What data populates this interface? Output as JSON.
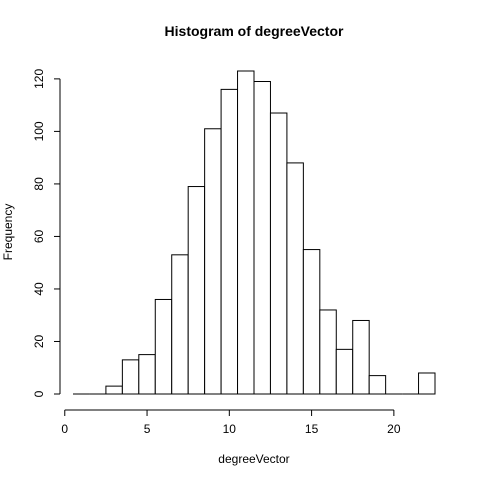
{
  "chart_data": {
    "type": "bar",
    "title": "Histogram of degreeVector",
    "xlabel": "degreeVector",
    "ylabel": "Frequency",
    "bin_width": 1,
    "bins": [
      {
        "x0": 0.5,
        "x1": 1.5,
        "count": 0
      },
      {
        "x0": 1.5,
        "x1": 2.5,
        "count": 0
      },
      {
        "x0": 2.5,
        "x1": 3.5,
        "count": 3
      },
      {
        "x0": 3.5,
        "x1": 4.5,
        "count": 13
      },
      {
        "x0": 4.5,
        "x1": 5.5,
        "count": 15
      },
      {
        "x0": 5.5,
        "x1": 6.5,
        "count": 36
      },
      {
        "x0": 6.5,
        "x1": 7.5,
        "count": 53
      },
      {
        "x0": 7.5,
        "x1": 8.5,
        "count": 79
      },
      {
        "x0": 8.5,
        "x1": 9.5,
        "count": 101
      },
      {
        "x0": 9.5,
        "x1": 10.5,
        "count": 116
      },
      {
        "x0": 10.5,
        "x1": 11.5,
        "count": 123
      },
      {
        "x0": 11.5,
        "x1": 12.5,
        "count": 119
      },
      {
        "x0": 12.5,
        "x1": 13.5,
        "count": 107
      },
      {
        "x0": 13.5,
        "x1": 14.5,
        "count": 88
      },
      {
        "x0": 14.5,
        "x1": 15.5,
        "count": 55
      },
      {
        "x0": 15.5,
        "x1": 16.5,
        "count": 32
      },
      {
        "x0": 16.5,
        "x1": 17.5,
        "count": 17
      },
      {
        "x0": 17.5,
        "x1": 18.5,
        "count": 28
      },
      {
        "x0": 18.5,
        "x1": 19.5,
        "count": 7
      },
      {
        "x0": 19.5,
        "x1": 20.5,
        "count": 0
      },
      {
        "x0": 20.5,
        "x1": 21.5,
        "count": 0
      },
      {
        "x0": 21.5,
        "x1": 22.5,
        "count": 8
      }
    ],
    "xticks": [
      0,
      5,
      10,
      15,
      20
    ],
    "yticks": [
      0,
      20,
      40,
      60,
      80,
      100,
      120
    ],
    "xlim": [
      0.5,
      22.5
    ],
    "ylim": [
      0,
      123
    ],
    "grid": false,
    "legend": "none"
  }
}
